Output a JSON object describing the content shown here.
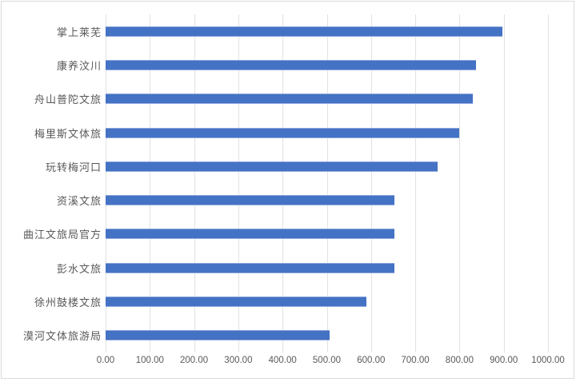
{
  "chart_data": {
    "type": "bar",
    "orientation": "horizontal",
    "title": "",
    "xlabel": "",
    "ylabel": "",
    "categories": [
      "掌上莱芜",
      "康养汶川",
      "舟山普陀文旅",
      "梅里斯文体旅",
      "玩转梅河口",
      "资溪文旅",
      "曲江文旅局官方",
      "彭水文旅",
      "徐州鼓楼文旅",
      "漠河文体旅游局"
    ],
    "values": [
      897,
      837,
      830,
      800,
      750,
      652,
      652,
      652,
      589,
      507
    ],
    "xlim": [
      0,
      1000
    ],
    "x_ticks": [
      "0.00",
      "100.00",
      "200.00",
      "300.00",
      "400.00",
      "500.00",
      "600.00",
      "700.00",
      "800.00",
      "900.00",
      "1000.00"
    ],
    "grid": true,
    "legend": "none",
    "bar_color": "#4472c4",
    "gridline_color": "#e2e2e2",
    "text_color": "#595959",
    "frame_border_color": "#dadada",
    "background_color": "#ffffff"
  }
}
